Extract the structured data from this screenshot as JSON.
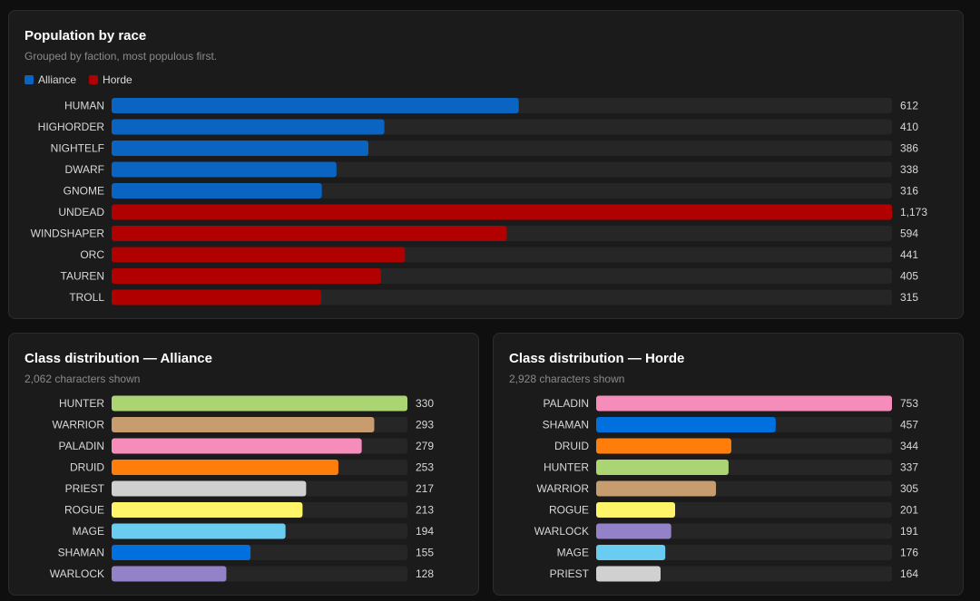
{
  "race_card": {
    "title": "Population by race",
    "subtitle": "Grouped by faction, most populous first.",
    "legend": [
      {
        "name": "Alliance",
        "color": "#0a64c2"
      },
      {
        "name": "Horde",
        "color": "#b10000"
      }
    ]
  },
  "alliance_card": {
    "title": "Class distribution — Alliance",
    "subtitle": "2,062 characters shown"
  },
  "horde_card": {
    "title": "Class distribution — Horde",
    "subtitle": "2,928 characters shown"
  },
  "chart_data": [
    {
      "type": "bar",
      "orientation": "horizontal",
      "title": "Population by race",
      "categories": [
        "HUMAN",
        "HIGHORDER",
        "NIGHTELF",
        "DWARF",
        "GNOME",
        "UNDEAD",
        "WINDSHAPER",
        "ORC",
        "TAUREN",
        "TROLL"
      ],
      "values": [
        612,
        410,
        386,
        338,
        316,
        1173,
        594,
        441,
        405,
        315
      ],
      "value_labels": [
        "612",
        "410",
        "386",
        "338",
        "316",
        "1,173",
        "594",
        "441",
        "405",
        "315"
      ],
      "faction": [
        "Alliance",
        "Alliance",
        "Alliance",
        "Alliance",
        "Alliance",
        "Horde",
        "Horde",
        "Horde",
        "Horde",
        "Horde"
      ],
      "colors": [
        "#0a64c2",
        "#0a64c2",
        "#0a64c2",
        "#0a64c2",
        "#0a64c2",
        "#b10000",
        "#b10000",
        "#b10000",
        "#b10000",
        "#b10000"
      ],
      "xlim": [
        0,
        1173
      ],
      "track_color": "#262626"
    },
    {
      "type": "bar",
      "orientation": "horizontal",
      "title": "Class distribution — Alliance",
      "categories": [
        "HUNTER",
        "WARRIOR",
        "PALADIN",
        "DRUID",
        "PRIEST",
        "ROGUE",
        "MAGE",
        "SHAMAN",
        "WARLOCK"
      ],
      "values": [
        330,
        293,
        279,
        253,
        217,
        213,
        194,
        155,
        128
      ],
      "value_labels": [
        "330",
        "293",
        "279",
        "253",
        "217",
        "213",
        "194",
        "155",
        "128"
      ],
      "colors": [
        "#abd473",
        "#c79c6e",
        "#f58cba",
        "#ff7d0a",
        "#d0d0d0",
        "#fff569",
        "#69ccf0",
        "#0070de",
        "#9482c9"
      ],
      "xlim": [
        0,
        330
      ],
      "track_color": "#262626"
    },
    {
      "type": "bar",
      "orientation": "horizontal",
      "title": "Class distribution — Horde",
      "categories": [
        "PALADIN",
        "SHAMAN",
        "DRUID",
        "HUNTER",
        "WARRIOR",
        "ROGUE",
        "WARLOCK",
        "MAGE",
        "PRIEST"
      ],
      "values": [
        753,
        457,
        344,
        337,
        305,
        201,
        191,
        176,
        164
      ],
      "value_labels": [
        "753",
        "457",
        "344",
        "337",
        "305",
        "201",
        "191",
        "176",
        "164"
      ],
      "colors": [
        "#f58cba",
        "#0070de",
        "#ff7d0a",
        "#abd473",
        "#c79c6e",
        "#fff569",
        "#9482c9",
        "#69ccf0",
        "#d0d0d0"
      ],
      "xlim": [
        0,
        753
      ],
      "track_color": "#262626"
    }
  ]
}
